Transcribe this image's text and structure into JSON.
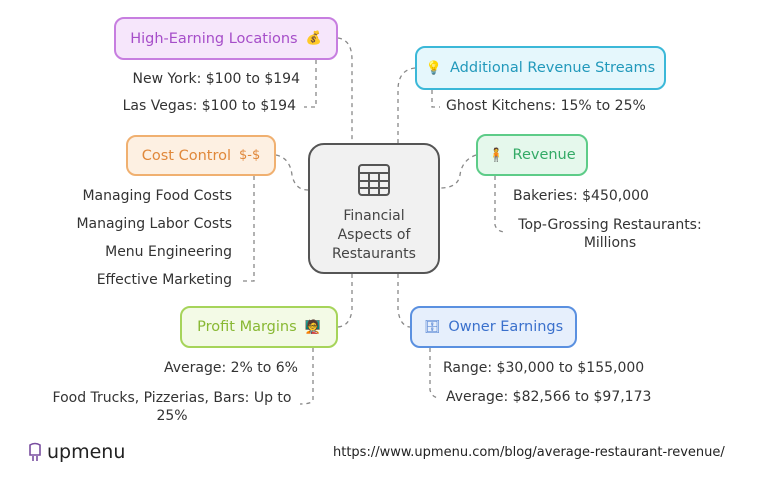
{
  "center": {
    "title": "Financial Aspects of Restaurants",
    "icon": "table-icon"
  },
  "branches": {
    "high_earning": {
      "label": "High-Earning Locations",
      "icon": "money-person-icon",
      "color": "#a64ec9",
      "items": [
        "New York: $100 to $194",
        "Las Vegas: $100 to $194"
      ]
    },
    "additional_revenue": {
      "label": "Additional Revenue Streams",
      "icon": "dollar-bulb-icon",
      "color": "#2299bb",
      "items": [
        "Ghost Kitchens: 15% to 25%"
      ]
    },
    "cost_control": {
      "label": "Cost Control",
      "icon": "person-dollar-icon",
      "color": "#e0883a",
      "items": [
        "Managing Food Costs",
        "Managing Labor Costs",
        "Menu Engineering",
        "Effective Marketing"
      ]
    },
    "revenue": {
      "label": "Revenue",
      "icon": "cashier-icon",
      "color": "#33aa66",
      "items": [
        "Bakeries: $450,000",
        "Top-Grossing Restaurants: Millions"
      ]
    },
    "profit_margins": {
      "label": "Profit Margins",
      "icon": "presenter-icon",
      "color": "#88b833",
      "items": [
        "Average: 2% to 6%",
        "Food Trucks, Pizzerias, Bars: Up to 25%"
      ]
    },
    "owner_earnings": {
      "label": "Owner Earnings",
      "icon": "safe-icon",
      "color": "#3a70cc",
      "items": [
        "Range: $30,000 to $155,000",
        "Average: $82,566 to $97,173"
      ]
    }
  },
  "footer": {
    "brand": "upmenu",
    "url": "https://www.upmenu.com/blog/average-restaurant-revenue/"
  }
}
